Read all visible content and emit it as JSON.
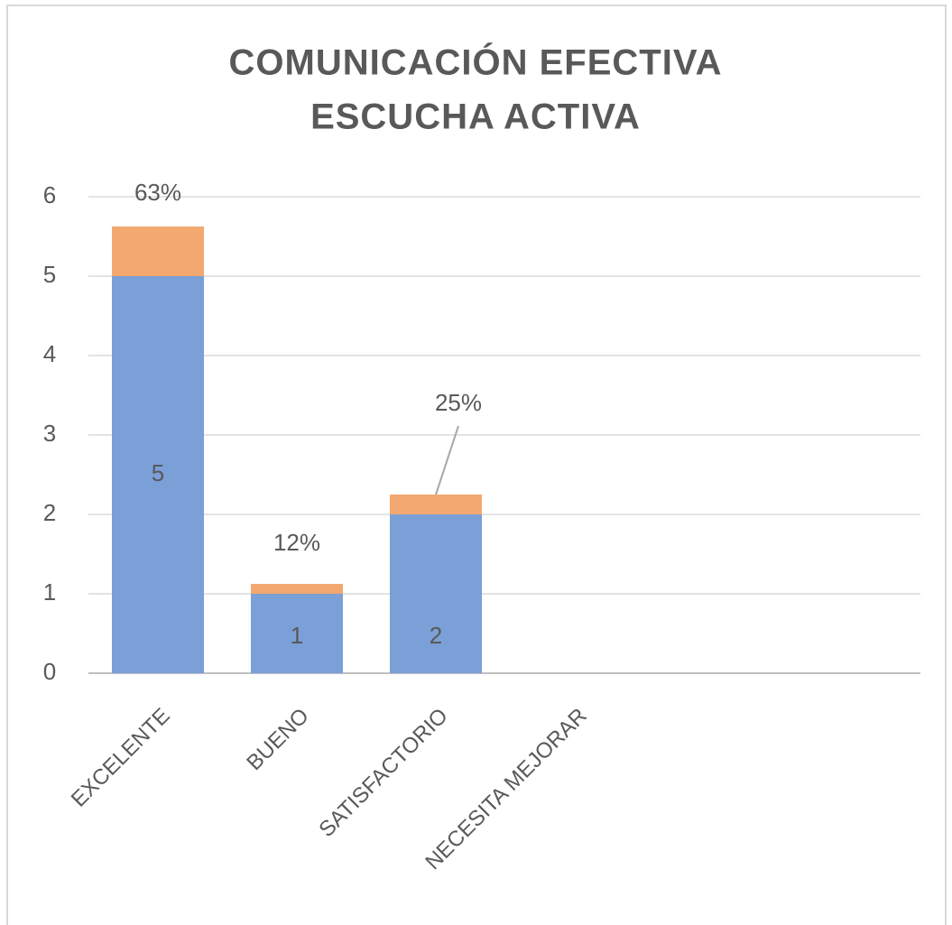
{
  "chart_data": {
    "type": "stacked_bar",
    "title": [
      "COMUNICACIÓN EFECTIVA",
      "ESCUCHA ACTIVA"
    ],
    "categories": [
      "EXCELENTE",
      "BUENO",
      "SATISFACTORIO",
      "NECESITA MEJORAR"
    ],
    "series": [
      {
        "color": "#7b9fd7",
        "values": [
          5,
          1,
          2,
          null
        ]
      },
      {
        "color": "#f3a86f",
        "values": [
          0.625,
          0.125,
          0.25,
          null
        ],
        "value_labels": [
          "63%",
          "12%",
          "25%",
          null
        ]
      }
    ],
    "ylim": [
      0,
      6
    ],
    "yticks": [
      0,
      1,
      2,
      3,
      4,
      5,
      6
    ],
    "grid": true
  }
}
